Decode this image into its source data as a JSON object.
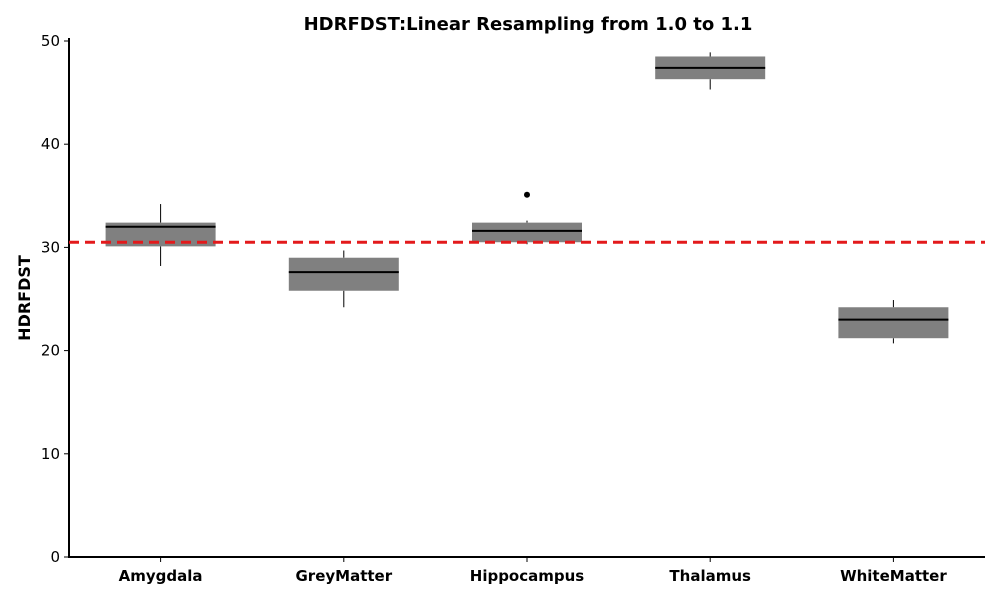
{
  "chart_data": {
    "type": "box",
    "title": "HDRFDST:Linear Resampling from 1.0 to 1.1",
    "xlabel": "",
    "ylabel": "HDRFDST",
    "ylim": [
      0,
      50
    ],
    "yticks": [
      0,
      10,
      20,
      30,
      40,
      50
    ],
    "categories": [
      "Amygdala",
      "GreyMatter",
      "Hippocampus",
      "Thalamus",
      "WhiteMatter"
    ],
    "boxes": [
      {
        "category": "Amygdala",
        "whisker_low": 28.2,
        "q1": 30.1,
        "median": 32.0,
        "q3": 32.4,
        "whisker_high": 34.2,
        "outliers": []
      },
      {
        "category": "GreyMatter",
        "whisker_low": 24.2,
        "q1": 25.8,
        "median": 27.6,
        "q3": 29.0,
        "whisker_high": 29.7,
        "outliers": []
      },
      {
        "category": "Hippocampus",
        "whisker_low": 30.3,
        "q1": 30.5,
        "median": 31.6,
        "q3": 32.4,
        "whisker_high": 32.6,
        "outliers": [
          35.1
        ]
      },
      {
        "category": "Thalamus",
        "whisker_low": 45.3,
        "q1": 46.3,
        "median": 47.4,
        "q3": 48.5,
        "whisker_high": 48.9,
        "outliers": []
      },
      {
        "category": "WhiteMatter",
        "whisker_low": 20.7,
        "q1": 21.2,
        "median": 23.0,
        "q3": 24.2,
        "whisker_high": 24.9,
        "outliers": []
      }
    ],
    "reference_line": {
      "value": 30.5,
      "style": "dashed",
      "color": "#e31a1c"
    },
    "box_color": "#808080",
    "median_color": "#000000",
    "grid": false,
    "legend": "none"
  }
}
